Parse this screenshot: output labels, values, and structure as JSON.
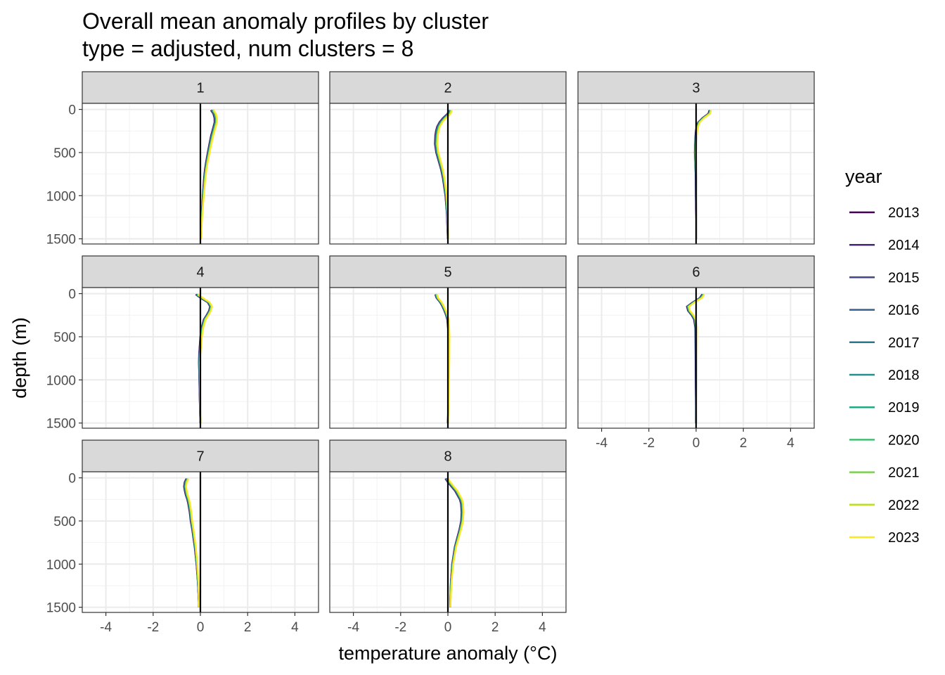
{
  "chart_data": {
    "type": "line",
    "title": "Overall mean anomaly profiles by cluster",
    "subtitle": "type = adjusted, num clusters = 8",
    "xlabel": "temperature anomaly (°C)",
    "ylabel": "depth (m)",
    "xlim": [
      -5,
      5
    ],
    "ylim": [
      1560,
      -70
    ],
    "x_ticks": [
      -4,
      -2,
      0,
      2,
      4
    ],
    "x_tick_labels": [
      "-4",
      "-2",
      "0",
      "2",
      "4"
    ],
    "y_ticks": [
      0,
      500,
      1000,
      1500
    ],
    "y_tick_labels": [
      "0",
      "500",
      "1000",
      "1500"
    ],
    "grid": true,
    "legend": {
      "title": "year",
      "position": "right",
      "entries": [
        "2013",
        "2014",
        "2015",
        "2016",
        "2017",
        "2018",
        "2019",
        "2020",
        "2021",
        "2022",
        "2023"
      ],
      "colors": [
        "#440154",
        "#482576",
        "#414487",
        "#35608D",
        "#2A788E",
        "#21908C",
        "#22A884",
        "#43BF71",
        "#7AD151",
        "#BBDF27",
        "#FDE725"
      ]
    },
    "reference_line_x": 0,
    "depths": [
      10,
      50,
      100,
      150,
      200,
      250,
      300,
      400,
      500,
      600,
      700,
      800,
      1000,
      1200,
      1400,
      1500
    ],
    "panels": [
      {
        "label": "1",
        "profile": [
          0.5,
          0.6,
          0.65,
          0.65,
          0.6,
          0.55,
          0.5,
          0.42,
          0.35,
          0.28,
          0.22,
          0.18,
          0.12,
          0.07,
          0.03,
          0.02
        ],
        "spread": 0.06
      },
      {
        "label": "2",
        "profile": [
          0.1,
          0.05,
          -0.15,
          -0.3,
          -0.4,
          -0.45,
          -0.48,
          -0.5,
          -0.45,
          -0.35,
          -0.25,
          -0.18,
          -0.08,
          -0.03,
          -0.01,
          0.0
        ],
        "spread": 0.07
      },
      {
        "label": "3",
        "profile": [
          0.6,
          0.55,
          0.3,
          0.12,
          0.05,
          0.02,
          0.0,
          -0.02,
          -0.03,
          -0.02,
          -0.01,
          0.0,
          0.0,
          0.01,
          0.02,
          0.02
        ],
        "spread": 0.04
      },
      {
        "label": "4",
        "profile": [
          -0.15,
          0.05,
          0.35,
          0.45,
          0.4,
          0.3,
          0.18,
          0.08,
          0.03,
          0.0,
          -0.03,
          -0.04,
          -0.03,
          -0.02,
          -0.01,
          0.0
        ],
        "spread": 0.05
      },
      {
        "label": "5",
        "profile": [
          -0.5,
          -0.45,
          -0.3,
          -0.2,
          -0.12,
          -0.05,
          0.0,
          0.03,
          0.04,
          0.04,
          0.04,
          0.04,
          0.03,
          0.02,
          0.01,
          0.0
        ],
        "spread": 0.04
      },
      {
        "label": "6",
        "profile": [
          0.3,
          0.2,
          -0.1,
          -0.35,
          -0.3,
          -0.15,
          -0.05,
          0.0,
          0.0,
          0.0,
          0.0,
          0.0,
          0.0,
          0.0,
          0.0,
          0.0
        ],
        "spread": 0.05
      },
      {
        "label": "7",
        "profile": [
          -0.55,
          -0.62,
          -0.65,
          -0.62,
          -0.58,
          -0.52,
          -0.48,
          -0.42,
          -0.38,
          -0.32,
          -0.27,
          -0.22,
          -0.15,
          -0.1,
          -0.07,
          -0.06
        ],
        "spread": 0.05
      },
      {
        "label": "8",
        "profile": [
          -0.05,
          0.05,
          0.2,
          0.35,
          0.45,
          0.55,
          0.6,
          0.62,
          0.6,
          0.52,
          0.42,
          0.32,
          0.2,
          0.14,
          0.11,
          0.1
        ],
        "spread": 0.06
      }
    ]
  }
}
